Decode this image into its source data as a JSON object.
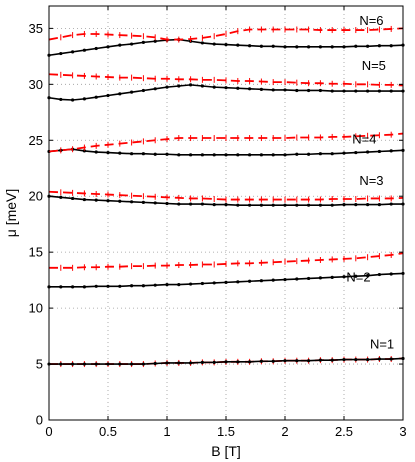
{
  "chart_data": {
    "type": "line",
    "title": "",
    "xlabel": "B [T]",
    "ylabel": "μ [meV]",
    "xlim": [
      0,
      3
    ],
    "ylim": [
      0,
      37
    ],
    "xticks": [
      0,
      0.5,
      1,
      1.5,
      2,
      2.5,
      3
    ],
    "xtick_labels": [
      "0",
      "0.5",
      "1",
      "1.5",
      "2",
      "2.5",
      "3"
    ],
    "yticks": [
      0,
      5,
      10,
      15,
      20,
      25,
      30,
      35
    ],
    "ytick_labels": [
      "0",
      "5",
      "10",
      "15",
      "20",
      "25",
      "30",
      "35"
    ],
    "grid": true,
    "colors": {
      "solid": "#000000",
      "dashed": "#ff0000"
    },
    "series": [
      {
        "style": "dashed",
        "color": "#ff0000",
        "x": [
          0,
          0.1,
          0.2,
          0.3,
          0.4,
          0.5,
          0.6,
          0.7,
          0.8,
          0.9,
          1.0,
          1.1,
          1.2,
          1.3,
          1.4,
          1.5,
          1.6,
          1.7,
          1.8,
          1.9,
          2.0,
          2.1,
          2.2,
          2.3,
          2.4,
          2.5,
          2.6,
          2.7,
          2.8,
          2.9,
          3.0
        ],
        "y": [
          5.0,
          5.0,
          5.0,
          5.0,
          5.0,
          5.0,
          5.0,
          5.0,
          5.0,
          5.05,
          5.1,
          5.1,
          5.1,
          5.15,
          5.15,
          5.2,
          5.2,
          5.2,
          5.25,
          5.25,
          5.3,
          5.3,
          5.3,
          5.35,
          5.35,
          5.4,
          5.4,
          5.4,
          5.45,
          5.45,
          5.5
        ]
      },
      {
        "style": "solid",
        "color": "#000000",
        "x": [
          0,
          0.1,
          0.2,
          0.3,
          0.4,
          0.5,
          0.6,
          0.7,
          0.8,
          0.9,
          1.0,
          1.1,
          1.2,
          1.3,
          1.4,
          1.5,
          1.6,
          1.7,
          1.8,
          1.9,
          2.0,
          2.1,
          2.2,
          2.3,
          2.4,
          2.5,
          2.6,
          2.7,
          2.8,
          2.9,
          3.0
        ],
        "y": [
          5.0,
          5.0,
          5.0,
          5.0,
          5.0,
          5.0,
          5.0,
          5.0,
          5.0,
          5.05,
          5.1,
          5.1,
          5.1,
          5.15,
          5.15,
          5.2,
          5.2,
          5.2,
          5.25,
          5.25,
          5.3,
          5.3,
          5.3,
          5.35,
          5.35,
          5.4,
          5.4,
          5.4,
          5.45,
          5.45,
          5.5
        ]
      },
      {
        "style": "solid",
        "color": "#000000",
        "x": [
          0,
          0.1,
          0.2,
          0.3,
          0.4,
          0.5,
          0.6,
          0.7,
          0.8,
          0.9,
          1.0,
          1.1,
          1.2,
          1.3,
          1.4,
          1.5,
          1.6,
          1.7,
          1.8,
          1.9,
          2.0,
          2.1,
          2.2,
          2.3,
          2.4,
          2.5,
          2.6,
          2.7,
          2.8,
          2.9,
          3.0
        ],
        "y": [
          11.9,
          11.9,
          11.9,
          11.9,
          11.95,
          11.95,
          11.95,
          12.0,
          12.0,
          12.05,
          12.1,
          12.1,
          12.15,
          12.2,
          12.25,
          12.3,
          12.35,
          12.4,
          12.45,
          12.5,
          12.55,
          12.6,
          12.65,
          12.7,
          12.75,
          12.8,
          12.85,
          12.9,
          13.0,
          13.05,
          13.1
        ]
      },
      {
        "style": "dashed",
        "color": "#ff0000",
        "x": [
          0,
          0.1,
          0.2,
          0.3,
          0.4,
          0.5,
          0.6,
          0.7,
          0.8,
          0.9,
          1.0,
          1.1,
          1.2,
          1.3,
          1.4,
          1.5,
          1.6,
          1.7,
          1.8,
          1.9,
          2.0,
          2.1,
          2.2,
          2.3,
          2.4,
          2.5,
          2.6,
          2.7,
          2.8,
          2.9,
          3.0
        ],
        "y": [
          13.6,
          13.6,
          13.6,
          13.65,
          13.65,
          13.7,
          13.7,
          13.75,
          13.75,
          13.8,
          13.8,
          13.85,
          13.85,
          13.9,
          13.9,
          13.95,
          14.0,
          14.0,
          14.05,
          14.1,
          14.15,
          14.2,
          14.25,
          14.3,
          14.35,
          14.4,
          14.45,
          14.55,
          14.65,
          14.75,
          14.9
        ]
      },
      {
        "style": "solid",
        "color": "#000000",
        "x": [
          0,
          0.1,
          0.2,
          0.3,
          0.4,
          0.5,
          0.6,
          0.7,
          0.8,
          0.9,
          1.0,
          1.1,
          1.2,
          1.3,
          1.4,
          1.5,
          1.6,
          1.7,
          1.8,
          1.9,
          2.0,
          2.1,
          2.2,
          2.3,
          2.4,
          2.5,
          2.6,
          2.7,
          2.8,
          2.9,
          3.0
        ],
        "y": [
          20.0,
          19.9,
          19.8,
          19.7,
          19.65,
          19.6,
          19.55,
          19.5,
          19.45,
          19.4,
          19.35,
          19.3,
          19.3,
          19.3,
          19.25,
          19.25,
          19.2,
          19.2,
          19.2,
          19.2,
          19.2,
          19.2,
          19.2,
          19.2,
          19.2,
          19.25,
          19.25,
          19.25,
          19.25,
          19.3,
          19.3
        ]
      },
      {
        "style": "dashed",
        "color": "#ff0000",
        "x": [
          0,
          0.1,
          0.2,
          0.3,
          0.4,
          0.5,
          0.6,
          0.7,
          0.8,
          0.9,
          1.0,
          1.1,
          1.2,
          1.3,
          1.4,
          1.5,
          1.6,
          1.7,
          1.8,
          1.9,
          2.0,
          2.1,
          2.2,
          2.3,
          2.4,
          2.5,
          2.6,
          2.7,
          2.8,
          2.9,
          3.0
        ],
        "y": [
          20.4,
          20.35,
          20.3,
          20.25,
          20.2,
          20.15,
          20.1,
          20.05,
          20.0,
          19.95,
          19.9,
          19.85,
          19.8,
          19.8,
          19.75,
          19.7,
          19.7,
          19.7,
          19.7,
          19.7,
          19.7,
          19.7,
          19.7,
          19.7,
          19.75,
          19.75,
          19.75,
          19.8,
          19.8,
          19.8,
          19.85
        ]
      },
      {
        "style": "solid",
        "color": "#000000",
        "x": [
          0,
          0.1,
          0.2,
          0.3,
          0.4,
          0.5,
          0.6,
          0.7,
          0.8,
          0.9,
          1.0,
          1.1,
          1.2,
          1.3,
          1.4,
          1.5,
          1.6,
          1.7,
          1.8,
          1.9,
          2.0,
          2.1,
          2.2,
          2.3,
          2.4,
          2.5,
          2.6,
          2.7,
          2.8,
          2.9,
          3.0
        ],
        "y": [
          24.0,
          24.1,
          24.2,
          24.05,
          23.95,
          23.9,
          23.85,
          23.8,
          23.8,
          23.75,
          23.75,
          23.7,
          23.7,
          23.7,
          23.7,
          23.7,
          23.7,
          23.7,
          23.7,
          23.7,
          23.7,
          23.75,
          23.75,
          23.8,
          23.8,
          23.85,
          23.9,
          23.95,
          24.0,
          24.05,
          24.1
        ]
      },
      {
        "style": "dashed",
        "color": "#ff0000",
        "x": [
          0,
          0.1,
          0.2,
          0.3,
          0.4,
          0.5,
          0.6,
          0.7,
          0.8,
          0.9,
          1.0,
          1.1,
          1.2,
          1.3,
          1.4,
          1.5,
          1.6,
          1.7,
          1.8,
          1.9,
          2.0,
          2.1,
          2.2,
          2.3,
          2.4,
          2.5,
          2.6,
          2.7,
          2.8,
          2.9,
          3.0
        ],
        "y": [
          24.0,
          24.1,
          24.2,
          24.35,
          24.5,
          24.6,
          24.7,
          24.8,
          24.9,
          25.0,
          25.1,
          25.2,
          25.2,
          25.2,
          25.2,
          25.2,
          25.2,
          25.2,
          25.2,
          25.2,
          25.2,
          25.25,
          25.25,
          25.25,
          25.3,
          25.3,
          25.35,
          25.4,
          25.45,
          25.5,
          25.6
        ]
      },
      {
        "style": "solid",
        "color": "#000000",
        "x": [
          0,
          0.1,
          0.2,
          0.3,
          0.4,
          0.5,
          0.6,
          0.7,
          0.8,
          0.9,
          1.0,
          1.1,
          1.2,
          1.3,
          1.4,
          1.5,
          1.6,
          1.7,
          1.8,
          1.9,
          2.0,
          2.1,
          2.2,
          2.3,
          2.4,
          2.5,
          2.6,
          2.7,
          2.8,
          2.9,
          3.0
        ],
        "y": [
          28.8,
          28.65,
          28.6,
          28.7,
          28.85,
          29.0,
          29.15,
          29.3,
          29.45,
          29.6,
          29.75,
          29.85,
          29.95,
          29.85,
          29.75,
          29.7,
          29.65,
          29.6,
          29.55,
          29.5,
          29.5,
          29.45,
          29.45,
          29.45,
          29.4,
          29.4,
          29.4,
          29.4,
          29.4,
          29.4,
          29.4
        ]
      },
      {
        "style": "dashed",
        "color": "#ff0000",
        "x": [
          0,
          0.1,
          0.2,
          0.3,
          0.4,
          0.5,
          0.6,
          0.7,
          0.8,
          0.9,
          1.0,
          1.1,
          1.2,
          1.3,
          1.4,
          1.5,
          1.6,
          1.7,
          1.8,
          1.9,
          2.0,
          2.1,
          2.2,
          2.3,
          2.4,
          2.5,
          2.6,
          2.7,
          2.8,
          2.9,
          3.0
        ],
        "y": [
          30.9,
          30.85,
          30.8,
          30.75,
          30.7,
          30.65,
          30.6,
          30.6,
          30.55,
          30.5,
          30.5,
          30.45,
          30.45,
          30.4,
          30.4,
          30.35,
          30.3,
          30.3,
          30.25,
          30.2,
          30.2,
          30.15,
          30.1,
          30.1,
          30.05,
          30.05,
          30.0,
          30.0,
          29.95,
          29.95,
          29.9
        ]
      },
      {
        "style": "solid",
        "color": "#000000",
        "x": [
          0,
          0.1,
          0.2,
          0.3,
          0.4,
          0.5,
          0.6,
          0.7,
          0.8,
          0.9,
          1.0,
          1.1,
          1.2,
          1.3,
          1.4,
          1.5,
          1.6,
          1.7,
          1.8,
          1.9,
          2.0,
          2.1,
          2.2,
          2.3,
          2.4,
          2.5,
          2.6,
          2.7,
          2.8,
          2.9,
          3.0
        ],
        "y": [
          32.6,
          32.75,
          32.9,
          33.05,
          33.2,
          33.35,
          33.5,
          33.6,
          33.75,
          33.85,
          33.95,
          34.0,
          33.85,
          33.7,
          33.6,
          33.55,
          33.5,
          33.45,
          33.4,
          33.4,
          33.35,
          33.35,
          33.35,
          33.35,
          33.35,
          33.35,
          33.4,
          33.4,
          33.45,
          33.45,
          33.5
        ]
      },
      {
        "style": "dashed",
        "color": "#ff0000",
        "x": [
          0,
          0.1,
          0.2,
          0.3,
          0.4,
          0.5,
          0.6,
          0.7,
          0.8,
          0.9,
          1.0,
          1.1,
          1.2,
          1.3,
          1.4,
          1.5,
          1.6,
          1.7,
          1.8,
          1.9,
          2.0,
          2.1,
          2.2,
          2.3,
          2.4,
          2.5,
          2.6,
          2.7,
          2.8,
          2.9,
          3.0
        ],
        "y": [
          34.0,
          34.2,
          34.4,
          34.5,
          34.5,
          34.45,
          34.4,
          34.35,
          34.3,
          34.2,
          34.0,
          34.0,
          34.05,
          34.15,
          34.3,
          34.5,
          34.75,
          34.9,
          34.9,
          34.9,
          34.9,
          34.9,
          34.9,
          34.85,
          34.85,
          34.85,
          34.85,
          34.85,
          34.9,
          34.95,
          35.0
        ]
      }
    ],
    "annotations": [
      {
        "text": "N=1",
        "x": 2.72,
        "y": 6.4
      },
      {
        "text": "N=2",
        "x": 2.52,
        "y": 12.4
      },
      {
        "text": "N=3",
        "x": 2.63,
        "y": 21.0
      },
      {
        "text": "N=4",
        "x": 2.57,
        "y": 24.7
      },
      {
        "text": "N=5",
        "x": 2.65,
        "y": 31.3
      },
      {
        "text": "N=6",
        "x": 2.63,
        "y": 35.3
      }
    ]
  }
}
